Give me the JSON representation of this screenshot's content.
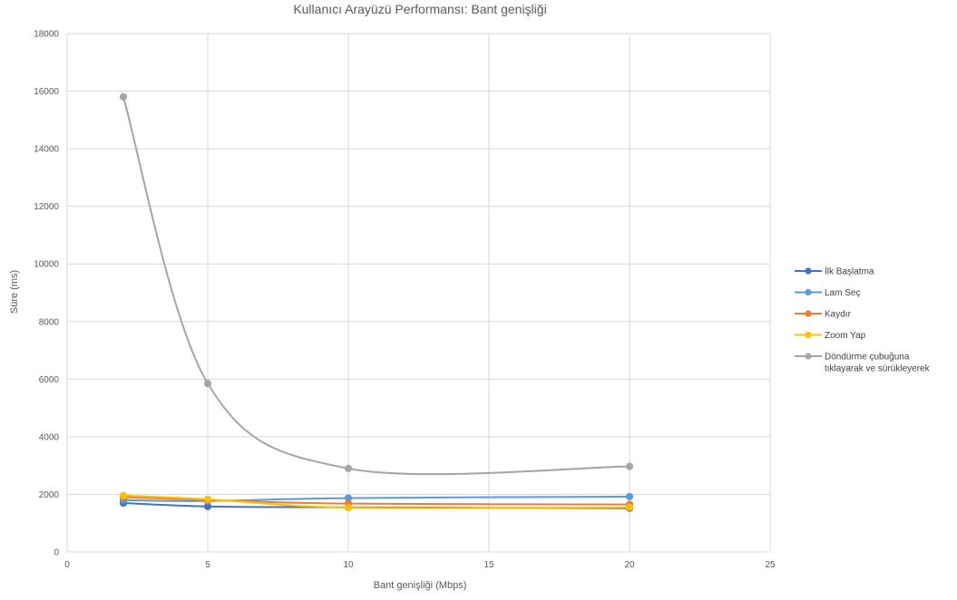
{
  "chart_data": {
    "type": "line",
    "title": "Kullanıcı Arayüzü Performansı: Bant genişliği",
    "xlabel": "Bant genişliği (Mbps)",
    "ylabel": "Süre (ms)",
    "xlim": [
      0,
      25
    ],
    "ylim": [
      0,
      18000
    ],
    "x_ticks": [
      "0",
      "5",
      "10",
      "15",
      "20",
      "25"
    ],
    "y_ticks": [
      "0",
      "2000",
      "4000",
      "6000",
      "8000",
      "10000",
      "12000",
      "14000",
      "16000",
      "18000"
    ],
    "grid": true,
    "legend_position": "right",
    "x": [
      2,
      5,
      10,
      20
    ],
    "series": [
      {
        "name": "İlk Başlatma",
        "color": "#4472c4",
        "values": [
          1700,
          1580,
          1550,
          1520
        ]
      },
      {
        "name": "Lam Seç",
        "color": "#5b9bd5",
        "values": [
          1800,
          1770,
          1870,
          1920
        ]
      },
      {
        "name": "Kaydır",
        "color": "#ed7d31",
        "values": [
          1900,
          1800,
          1680,
          1650
        ]
      },
      {
        "name": "Zoom Yap",
        "color": "#ffc000",
        "values": [
          1960,
          1830,
          1540,
          1550
        ]
      },
      {
        "name": "Döndürme çubuğuna tıklayarak ve sürükleyerek",
        "name_lines": [
          "Döndürme çubuğuna",
          "tıklayarak ve sürükleyerek"
        ],
        "color": "#a5a5a5",
        "values": [
          15800,
          5850,
          2900,
          2970
        ]
      }
    ]
  }
}
